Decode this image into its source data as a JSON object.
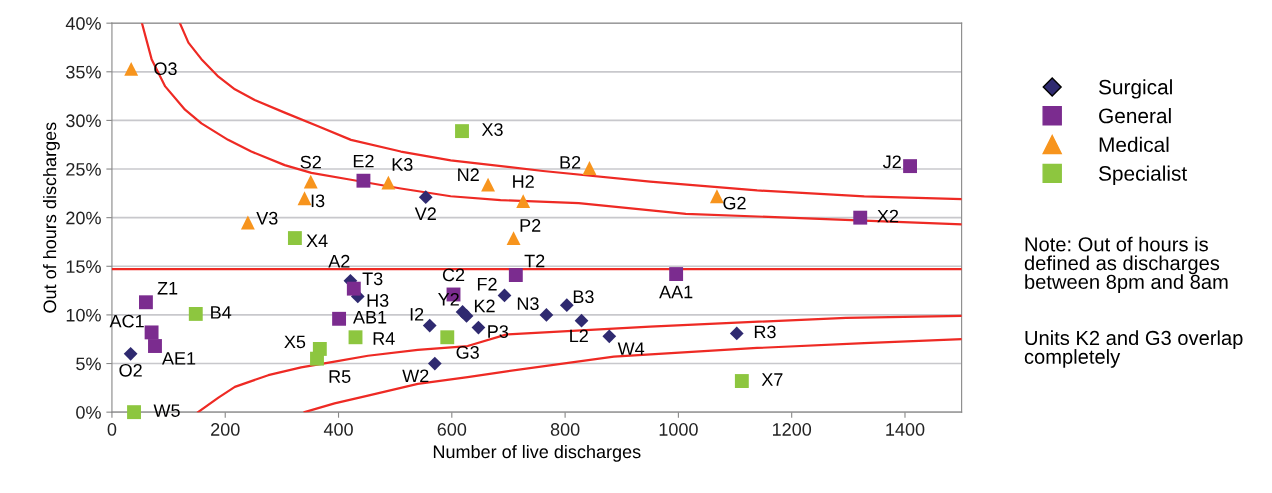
{
  "chart_data": {
    "type": "scatter",
    "xlabel": "Number of live discharges",
    "ylabel": "Out of hours discharges",
    "xlim": [
      0,
      1500
    ],
    "xticks": [
      0,
      200,
      400,
      600,
      800,
      1000,
      1200,
      1400
    ],
    "ylim": [
      0,
      40
    ],
    "yticks": [
      {
        "value": 0,
        "label": "0%"
      },
      {
        "value": 5,
        "label": "5%"
      },
      {
        "value": 10,
        "label": "10%"
      },
      {
        "value": 15,
        "label": "15%"
      },
      {
        "value": 20,
        "label": "20%"
      },
      {
        "value": 25,
        "label": "25%"
      },
      {
        "value": 30,
        "label": "30%"
      },
      {
        "value": 35,
        "label": "35%"
      },
      {
        "value": 40,
        "label": "40%"
      }
    ],
    "grid": "y",
    "legend": "right",
    "ref_lines": [
      {
        "axis": "y",
        "value": 14.7,
        "color": "#ee2a24"
      }
    ],
    "annotations": [
      "Note: Out of hours is defined as discharges between 8pm and 8am",
      "Units K2 and G3 overlap completely"
    ],
    "series": [
      {
        "name": "Surgical",
        "marker": "diamond",
        "color": "#2f2a70",
        "x": [
          33,
          421,
          434,
          554,
          561,
          619,
          626,
          647,
          570,
          693,
          767,
          803,
          829,
          878,
          1103
        ],
        "values": [
          6.0,
          13.5,
          11.9,
          22.1,
          8.9,
          10.3,
          9.9,
          8.7,
          5.0,
          12.0,
          10.0,
          11.0,
          9.4,
          7.8,
          8.1
        ],
        "value_labels": [
          "O2",
          "A2",
          "H3",
          "V2",
          "I2",
          "Y2",
          "K2",
          "P3",
          "W2",
          "F2",
          "N3",
          "B3",
          "L2",
          "W4",
          "R3"
        ]
      },
      {
        "name": "General",
        "marker": "square",
        "color": "#7b2c8f",
        "x": [
          444,
          60,
          70,
          76,
          427,
          401,
          603,
          713,
          996,
          1321,
          1409
        ],
        "values": [
          23.8,
          11.3,
          8.2,
          6.8,
          12.7,
          9.6,
          12.1,
          14.1,
          14.2,
          20.0,
          25.3
        ],
        "value_labels": [
          "E2",
          "Z1",
          "AC1",
          "AE1",
          "T3",
          "AB1",
          "C2",
          "T2",
          "AA1",
          "X2",
          "J2"
        ]
      },
      {
        "name": "Medical",
        "marker": "triangle",
        "color": "#f7941d",
        "x": [
          34,
          351,
          340,
          240,
          488,
          664,
          843,
          726,
          709,
          1068
        ],
        "values": [
          35.3,
          23.7,
          22.0,
          19.5,
          23.6,
          23.4,
          25.1,
          21.7,
          17.9,
          22.2
        ],
        "value_labels": [
          "O3",
          "S2",
          "I3",
          "V3",
          "K3",
          "N2",
          "B2",
          "H2",
          "P2",
          "G2"
        ]
      },
      {
        "name": "Specialist",
        "marker": "square",
        "color": "#8dc63f",
        "x": [
          618,
          323,
          148,
          39,
          367,
          362,
          430,
          592,
          1112
        ],
        "values": [
          28.9,
          17.9,
          10.1,
          0.0,
          6.5,
          5.5,
          7.7,
          7.7,
          3.2
        ],
        "value_labels": [
          "X3",
          "X4",
          "B4",
          "W5",
          "X5",
          "R5",
          "R4",
          "G3",
          "X7"
        ]
      },
      {
        "type": "line",
        "color": "#ee2a24",
        "marker": "none",
        "x": [
          53,
          70,
          94,
          129,
          158,
          205,
          246,
          305,
          352,
          422,
          510,
          598,
          686,
          824,
          1013,
          1328,
          1500
        ],
        "values": [
          40.0,
          36.3,
          33.5,
          31.1,
          29.7,
          28.0,
          26.8,
          25.4,
          24.6,
          23.9,
          23.0,
          22.2,
          21.8,
          21.5,
          20.4,
          19.7,
          19.3
        ]
      },
      {
        "type": "line",
        "color": "#ee2a24",
        "marker": "none",
        "x": [
          120,
          135,
          158,
          188,
          217,
          252,
          305,
          364,
          422,
          510,
          598,
          761,
          950,
          1139,
          1328,
          1500
        ],
        "values": [
          40.0,
          38.0,
          36.3,
          34.5,
          33.2,
          32.1,
          30.8,
          29.4,
          28.0,
          26.8,
          25.9,
          24.8,
          23.7,
          22.8,
          22.2,
          21.9
        ]
      },
      {
        "type": "line",
        "color": "#ee2a24",
        "marker": "none",
        "x": [
          152,
          188,
          217,
          276,
          334,
          393,
          452,
          540,
          628,
          697,
          950,
          1296,
          1500
        ],
        "values": [
          0.0,
          1.5,
          2.6,
          3.8,
          4.6,
          5.2,
          5.8,
          6.4,
          6.8,
          8.0,
          8.8,
          9.7,
          9.9
        ]
      },
      {
        "type": "line",
        "color": "#ee2a24",
        "marker": "none",
        "x": [
          340,
          393,
          452,
          540,
          628,
          697,
          886,
          1139,
          1328,
          1500
        ],
        "values": [
          0.0,
          0.9,
          1.7,
          2.9,
          3.6,
          4.2,
          5.7,
          6.6,
          7.1,
          7.5
        ]
      }
    ]
  }
}
